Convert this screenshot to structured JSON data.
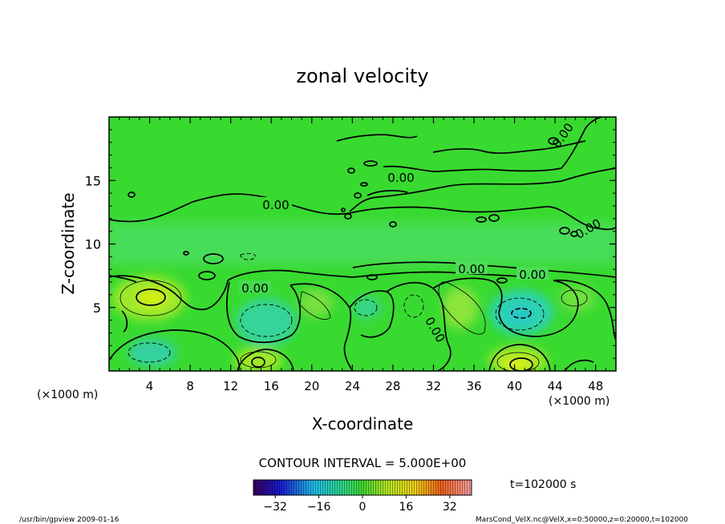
{
  "chart_data": {
    "type": "contour",
    "title": "zonal velocity",
    "xlabel": "X-coordinate",
    "ylabel": "Z-coordinate",
    "x_unit": "(×1000 m)",
    "x_unit_right": "(×1000 m)",
    "x_ticks": [
      "4",
      "8",
      "12",
      "16",
      "20",
      "24",
      "28",
      "32",
      "36",
      "40",
      "44",
      "48"
    ],
    "x_tick_values": [
      4,
      8,
      12,
      16,
      20,
      24,
      28,
      32,
      36,
      40,
      44,
      48
    ],
    "y_ticks": [
      "5",
      "10",
      "15"
    ],
    "y_tick_values": [
      5,
      10,
      15
    ],
    "xlim": [
      0,
      50
    ],
    "ylim": [
      0,
      20
    ],
    "contour_interval_text": "CONTOUR INTERVAL = 5.000E+00",
    "contour_labels": [
      "0.00",
      "0.00",
      "0.00",
      "0.00",
      "0.00",
      "0.00",
      "0.00",
      "0.00"
    ],
    "colorbar": {
      "ticks": [
        "−32",
        "−16",
        "0",
        "16",
        "32"
      ],
      "tick_values": [
        -32,
        -16,
        0,
        16,
        32
      ],
      "range": [
        -40,
        40
      ]
    },
    "time_label": "t=102000 s",
    "features": [
      {
        "kind": "max",
        "x": 4.0,
        "z": 6.2,
        "value": 15
      },
      {
        "kind": "max",
        "x": 15.0,
        "z": 0.8,
        "value": 12
      },
      {
        "kind": "max",
        "x": 40.5,
        "z": 0.7,
        "value": 15
      },
      {
        "kind": "min",
        "x": 40.5,
        "z": 4.5,
        "value": -12
      },
      {
        "kind": "min",
        "x": 16.5,
        "z": 4.0,
        "value": -8
      },
      {
        "kind": "min",
        "x": 25.5,
        "z": 4.8,
        "value": -6
      },
      {
        "kind": "min",
        "x": 3.5,
        "z": 1.4,
        "value": -6
      },
      {
        "kind": "max",
        "x": 34.5,
        "z": 5.5,
        "value": 7
      }
    ]
  },
  "footer": {
    "left": "/usr/bin/gpview   2009-01-16",
    "right": "MarsCond_VelX.nc@VelX,x=0:50000,z=0:20000,t=102000"
  },
  "colors": {
    "background_field": "#36d92e",
    "positive": "#c6ef16",
    "negative": "#2ed6a0"
  }
}
